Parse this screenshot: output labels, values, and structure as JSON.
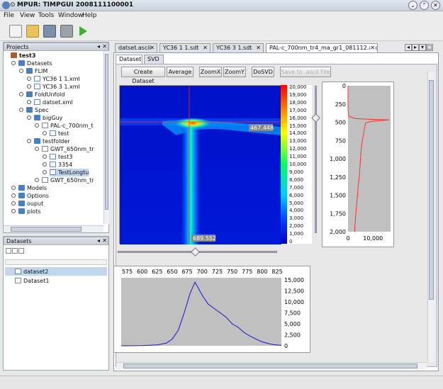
{
  "window": {
    "title": "MPUR: TIMPGUI 2008111100001"
  },
  "menu": [
    "File",
    "View",
    "Tools",
    "Window",
    "Help"
  ],
  "projects": {
    "title": "Projects",
    "tree": [
      {
        "label": "test3",
        "level": 0,
        "kind": "root"
      },
      {
        "label": "Datasets",
        "level": 1,
        "kind": "folder"
      },
      {
        "label": "FLIM",
        "level": 2,
        "kind": "folder"
      },
      {
        "label": "YC36 1 1.xml",
        "level": 3,
        "kind": "file"
      },
      {
        "label": "YC36 3 1.xml",
        "level": 3,
        "kind": "file"
      },
      {
        "label": "FoldUnfold",
        "level": 2,
        "kind": "folder"
      },
      {
        "label": "datset.xml",
        "level": 3,
        "kind": "file"
      },
      {
        "label": "Spec",
        "level": 2,
        "kind": "folder"
      },
      {
        "label": "bigGuy",
        "level": 3,
        "kind": "folder"
      },
      {
        "label": "PAL-c_700nm_t",
        "level": 4,
        "kind": "file"
      },
      {
        "label": "test",
        "level": 5,
        "kind": "file"
      },
      {
        "label": "testfolder",
        "level": 3,
        "kind": "folder"
      },
      {
        "label": "GWT_650nm_tr",
        "level": 4,
        "kind": "file"
      },
      {
        "label": "test3",
        "level": 5,
        "kind": "file"
      },
      {
        "label": "3354",
        "level": 5,
        "kind": "file"
      },
      {
        "label": "TestLongtu",
        "level": 5,
        "kind": "file"
      },
      {
        "label": "GWT_650nm_tr",
        "level": 4,
        "kind": "file"
      },
      {
        "label": "Models",
        "level": 1,
        "kind": "folder"
      },
      {
        "label": "Options",
        "level": 1,
        "kind": "folder"
      },
      {
        "label": "ouput",
        "level": 1,
        "kind": "folder"
      },
      {
        "label": "plots",
        "level": 1,
        "kind": "folder"
      }
    ]
  },
  "datasets": {
    "title": "Datasets",
    "items": [
      "dataset2",
      "Dataset1"
    ]
  },
  "tabs": [
    "datset.ascii",
    "YC36 1 1.sdt",
    "YC36 3 1.sdt",
    "PAL-c_700nm_tr4_ma_gr1_081112.ascii"
  ],
  "subtabs": [
    "Dataset",
    "SVD"
  ],
  "buttons": {
    "create": "Create Dataset",
    "average": "Average",
    "zoomx": "ZoomX",
    "zoomy": "ZoomY",
    "dosvd": "DoSVD",
    "save": "Save to .ascii File"
  },
  "heatmap": {
    "cross_y_label": "467.448",
    "cross_x_label": "689.552",
    "colorbar_ticks": [
      "20,000",
      "19,000",
      "18,000",
      "17,000",
      "16,000",
      "15,000",
      "14,000",
      "13,000",
      "12,000",
      "11,000",
      "10,000",
      "9,000",
      "8,000",
      "7,000",
      "6,000",
      "5,000",
      "4,000",
      "3,000",
      "2,000",
      "1,000",
      "0"
    ]
  },
  "chart_data": [
    {
      "type": "line",
      "orientation": "vertical-profile",
      "y_ticks": [
        "0",
        "250",
        "500",
        "750",
        "1,000",
        "1,250",
        "1,500",
        "1,750",
        "2,000"
      ],
      "x_ticks": [
        "0",
        "10,000"
      ],
      "ylim": [
        0,
        2000
      ],
      "xlim": [
        0,
        17000
      ],
      "series": [
        {
          "y": [
            0,
            100,
            200,
            300,
            380,
            420,
            450,
            460,
            467,
            475,
            490,
            510,
            550,
            600,
            700,
            800,
            900,
            1000,
            1100,
            1200,
            1300,
            1400,
            1500,
            1600,
            1700,
            1800,
            1900,
            2000
          ],
          "x": [
            0,
            0,
            0,
            0,
            100,
            500,
            3000,
            9000,
            16500,
            14000,
            9000,
            7000,
            6800,
            6500,
            6000,
            5500,
            5200,
            5000,
            4800,
            4600,
            4300,
            4000,
            3800,
            3500,
            3300,
            3000,
            2800,
            2600
          ]
        }
      ]
    },
    {
      "type": "line",
      "x_ticks": [
        "575",
        "600",
        "625",
        "650",
        "675",
        "700",
        "725",
        "750",
        "775",
        "800",
        "825"
      ],
      "y_ticks": [
        "15,000",
        "12,500",
        "10,000",
        "7,500",
        "5,000",
        "2,500",
        "0"
      ],
      "xlim": [
        565,
        832
      ],
      "ylim": [
        0,
        15500
      ],
      "series": [
        {
          "x": [
            565,
            600,
            625,
            640,
            650,
            660,
            670,
            680,
            688,
            692,
            700,
            710,
            720,
            730,
            740,
            750,
            760,
            770,
            780,
            790,
            800,
            810,
            820,
            832
          ],
          "y": [
            0,
            50,
            200,
            600,
            1500,
            3500,
            7500,
            12000,
            14500,
            13500,
            11500,
            9500,
            8500,
            7500,
            6500,
            5000,
            4200,
            3000,
            2200,
            1500,
            900,
            500,
            250,
            100
          ]
        }
      ]
    }
  ]
}
